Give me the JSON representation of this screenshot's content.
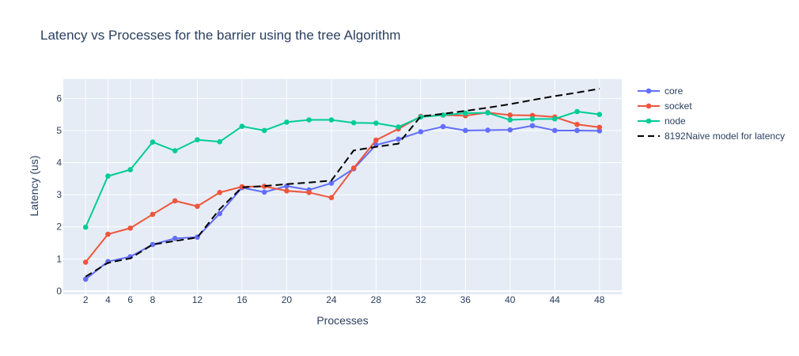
{
  "chart_data": {
    "type": "line",
    "title": "Latency vs Processes for the barrier using the tree Algorithm",
    "xlabel": "Processes",
    "ylabel": "Latency (us)",
    "xlim": [
      0,
      50
    ],
    "ylim": [
      -0.1,
      6.6
    ],
    "xticks": [
      2,
      4,
      6,
      8,
      12,
      16,
      20,
      24,
      28,
      32,
      36,
      40,
      44,
      48
    ],
    "yticks": [
      0,
      1,
      2,
      3,
      4,
      5,
      6
    ],
    "grid": true,
    "legend_position": "right",
    "background": "#e5ecf6",
    "series": [
      {
        "name": "core",
        "color": "#636efa",
        "mode": "lines+markers",
        "x": [
          2,
          4,
          6,
          8,
          10,
          12,
          14,
          16,
          18,
          20,
          22,
          24,
          26,
          28,
          30,
          32,
          34,
          36,
          38,
          40,
          42,
          44,
          46,
          48
        ],
        "y": [
          0.37,
          0.92,
          1.07,
          1.45,
          1.64,
          1.68,
          2.41,
          3.22,
          3.08,
          3.27,
          3.15,
          3.36,
          3.81,
          4.55,
          4.73,
          4.96,
          5.12,
          5.0,
          5.01,
          5.02,
          5.15,
          5.0,
          5.0,
          4.99
        ]
      },
      {
        "name": "socket",
        "color": "#ef553b",
        "mode": "lines+markers",
        "x": [
          2,
          4,
          6,
          8,
          10,
          12,
          14,
          16,
          18,
          20,
          22,
          24,
          26,
          28,
          30,
          32,
          34,
          36,
          38,
          40,
          42,
          44,
          46,
          48
        ],
        "y": [
          0.9,
          1.77,
          1.96,
          2.39,
          2.81,
          2.64,
          3.07,
          3.25,
          3.26,
          3.12,
          3.07,
          2.91,
          3.83,
          4.7,
          5.05,
          5.44,
          5.48,
          5.46,
          5.56,
          5.48,
          5.47,
          5.42,
          5.19,
          5.1
        ]
      },
      {
        "name": "node",
        "color": "#00cc96",
        "mode": "lines+markers",
        "x": [
          2,
          4,
          6,
          8,
          10,
          12,
          14,
          16,
          18,
          20,
          22,
          24,
          26,
          28,
          30,
          32,
          34,
          36,
          38,
          40,
          42,
          44,
          46,
          48
        ],
        "y": [
          1.99,
          3.58,
          3.78,
          4.64,
          4.37,
          4.71,
          4.65,
          5.13,
          5.0,
          5.26,
          5.33,
          5.33,
          5.24,
          5.23,
          5.11,
          5.42,
          5.48,
          5.54,
          5.55,
          5.33,
          5.36,
          5.36,
          5.59,
          5.5
        ]
      },
      {
        "name": "8192Naive model for latency",
        "color": "#000000",
        "mode": "lines",
        "dash": "dash",
        "x": [
          2,
          4,
          6,
          8,
          10,
          12,
          14,
          16,
          18,
          20,
          22,
          24,
          26,
          28,
          30,
          32,
          34,
          36,
          38,
          40,
          42,
          44,
          46,
          48
        ],
        "y": [
          0.45,
          0.88,
          1.02,
          1.45,
          1.56,
          1.67,
          2.55,
          3.23,
          3.27,
          3.33,
          3.38,
          3.44,
          4.38,
          4.49,
          4.59,
          5.44,
          5.52,
          5.61,
          5.71,
          5.82,
          5.95,
          6.07,
          6.18,
          6.3
        ]
      }
    ]
  }
}
